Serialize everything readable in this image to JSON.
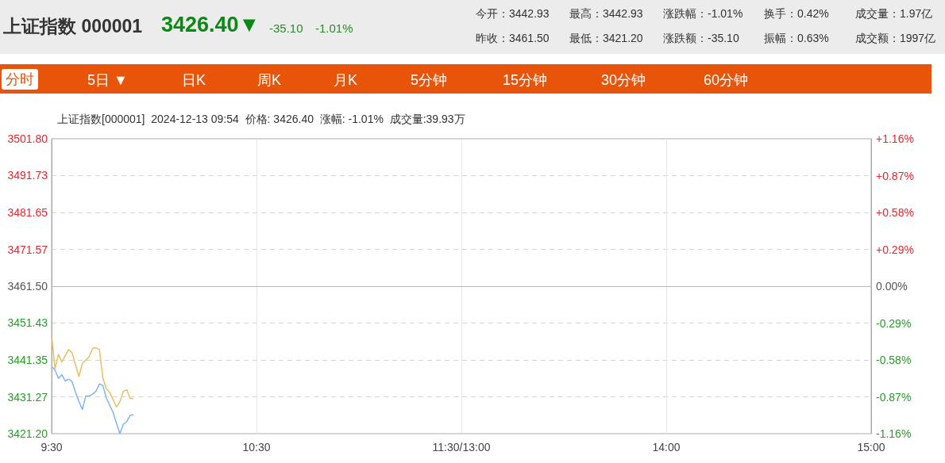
{
  "chart_data": {
    "type": "line",
    "title": "上证指数 000001",
    "annotations": [
      "3426.40▼",
      "-35.10",
      "-1.01%",
      "今开：3442.93",
      "最高：3442.93",
      "涨跌幅：-1.01%",
      "换手：0.42%",
      "成交量：1.97亿",
      "昨收：3461.50",
      "最低：3421.20",
      "涨跌额：-35.10",
      "振幅：0.63%",
      "成交额：1997亿",
      "分时",
      "5日 ▼",
      "日K",
      "周K",
      "月K",
      "5分钟",
      "15分钟",
      "30分钟",
      "60分钟",
      "上证指数[000001]  2024-12-13 09:54  价格: 3426.40  涨幅: -1.01%  成交量:39.93万"
    ],
    "categories": [
      "9:30",
      null,
      null,
      null,
      null,
      null,
      null,
      null,
      null,
      null,
      null,
      null,
      null,
      null,
      null,
      null,
      null,
      null,
      null,
      null,
      null,
      null,
      null,
      null,
      null,
      null,
      null,
      null,
      null,
      null,
      null,
      null,
      null,
      null,
      null,
      null,
      null,
      null,
      null,
      null,
      null,
      null,
      null,
      null,
      null,
      null,
      null,
      null,
      null,
      null,
      null,
      null,
      null,
      null,
      null,
      null,
      null,
      null,
      null,
      null,
      "10:30",
      null,
      null,
      null,
      null,
      null,
      null,
      null,
      null,
      null,
      null,
      null,
      null,
      null,
      null,
      null,
      null,
      null,
      null,
      null,
      null,
      null,
      null,
      null,
      null,
      null,
      null,
      null,
      null,
      null,
      null,
      null,
      null,
      null,
      null,
      null,
      null,
      null,
      null,
      null,
      null,
      null,
      null,
      null,
      null,
      null,
      null,
      null,
      null,
      null,
      null,
      null,
      null,
      null,
      null,
      null,
      null,
      null,
      null,
      null,
      "11:30/13:00",
      null,
      null,
      null,
      null,
      null,
      null,
      null,
      null,
      null,
      null,
      null,
      null,
      null,
      null,
      null,
      null,
      null,
      null,
      null,
      null,
      null,
      null,
      null,
      null,
      null,
      null,
      null,
      null,
      null,
      null,
      null,
      null,
      null,
      null,
      null,
      null,
      null,
      null,
      null,
      null,
      null,
      null,
      null,
      null,
      null,
      null,
      null,
      null,
      null,
      null,
      null,
      null,
      null,
      null,
      null,
      null,
      null,
      null,
      null,
      "14:00",
      null,
      null,
      null,
      null,
      null,
      null,
      null,
      null,
      null,
      null,
      null,
      null,
      null,
      null,
      null,
      null,
      null,
      null,
      null,
      null,
      null,
      null,
      null,
      null,
      null,
      null,
      null,
      null,
      null,
      null,
      null,
      null,
      null,
      null,
      null,
      null,
      null,
      null,
      null,
      null,
      null,
      null,
      null,
      null,
      null,
      null,
      null,
      null,
      null,
      null,
      null,
      null,
      null,
      null,
      null,
      null,
      null,
      null,
      null,
      "15:00"
    ],
    "series": [
      {
        "color": "#e8bf62",
        "values": [
          3448.0,
          3439.0,
          3442.9,
          3440.8,
          3442.5,
          3444.2,
          3443.3,
          3440.0,
          3436.8,
          3440.4,
          3441.3,
          3442.2,
          3444.5,
          3444.7,
          3444.2,
          3436.4,
          3433.5,
          3432.5,
          3430.5,
          3428.5,
          3429.9,
          3432.8,
          3433.2,
          3430.8,
          3430.8,
          null,
          null,
          null,
          null,
          null,
          null,
          null,
          null,
          null,
          null,
          null,
          null,
          null,
          null,
          null,
          null,
          null,
          null,
          null,
          null,
          null,
          null,
          null,
          null,
          null,
          null,
          null,
          null,
          null,
          null,
          null,
          null,
          null,
          null,
          null,
          null,
          null,
          null,
          null,
          null,
          null,
          null,
          null,
          null,
          null,
          null,
          null,
          null,
          null,
          null,
          null,
          null,
          null,
          null,
          null,
          null,
          null,
          null,
          null,
          null,
          null,
          null,
          null,
          null,
          null,
          null,
          null,
          null,
          null,
          null,
          null,
          null,
          null,
          null,
          null,
          null,
          null,
          null,
          null,
          null,
          null,
          null,
          null,
          null,
          null,
          null,
          null,
          null,
          null,
          null,
          null,
          null,
          null,
          null,
          null,
          null,
          null,
          null,
          null,
          null,
          null,
          null,
          null,
          null,
          null,
          null,
          null,
          null,
          null,
          null,
          null,
          null,
          null,
          null,
          null,
          null,
          null,
          null,
          null,
          null,
          null,
          null,
          null,
          null,
          null,
          null,
          null,
          null,
          null,
          null,
          null,
          null,
          null,
          null,
          null,
          null,
          null,
          null,
          null,
          null,
          null,
          null,
          null,
          null,
          null,
          null,
          null,
          null,
          null,
          null,
          null,
          null,
          null,
          null,
          null,
          null,
          null,
          null,
          null,
          null,
          null,
          null,
          null,
          null,
          null,
          null,
          null,
          null,
          null,
          null,
          null,
          null,
          null,
          null,
          null,
          null,
          null,
          null,
          null,
          null,
          null,
          null,
          null,
          null,
          null,
          null,
          null,
          null,
          null,
          null,
          null,
          null,
          null,
          null,
          null,
          null,
          null,
          null,
          null,
          null,
          null,
          null,
          null,
          null,
          null,
          null,
          null,
          null,
          null,
          null,
          null,
          null,
          null,
          null,
          null,
          null
        ]
      },
      {
        "color": "#7fb6f2",
        "values": [
          3439.6,
          3438.6,
          3436.3,
          3437.3,
          3435.6,
          3436.1,
          3435.4,
          3432.5,
          3430.0,
          3427.8,
          3431.5,
          3431.5,
          3432.0,
          3432.8,
          3434.8,
          3434.4,
          3431.0,
          3429.0,
          3427.0,
          3424.0,
          3421.2,
          3423.8,
          3424.5,
          3426.2,
          3426.4,
          null,
          null,
          null,
          null,
          null,
          null,
          null,
          null,
          null,
          null,
          null,
          null,
          null,
          null,
          null,
          null,
          null,
          null,
          null,
          null,
          null,
          null,
          null,
          null,
          null,
          null,
          null,
          null,
          null,
          null,
          null,
          null,
          null,
          null,
          null,
          null,
          null,
          null,
          null,
          null,
          null,
          null,
          null,
          null,
          null,
          null,
          null,
          null,
          null,
          null,
          null,
          null,
          null,
          null,
          null,
          null,
          null,
          null,
          null,
          null,
          null,
          null,
          null,
          null,
          null,
          null,
          null,
          null,
          null,
          null,
          null,
          null,
          null,
          null,
          null,
          null,
          null,
          null,
          null,
          null,
          null,
          null,
          null,
          null,
          null,
          null,
          null,
          null,
          null,
          null,
          null,
          null,
          null,
          null,
          null,
          null,
          null,
          null,
          null,
          null,
          null,
          null,
          null,
          null,
          null,
          null,
          null,
          null,
          null,
          null,
          null,
          null,
          null,
          null,
          null,
          null,
          null,
          null,
          null,
          null,
          null,
          null,
          null,
          null,
          null,
          null,
          null,
          null,
          null,
          null,
          null,
          null,
          null,
          null,
          null,
          null,
          null,
          null,
          null,
          null,
          null,
          null,
          null,
          null,
          null,
          null,
          null,
          null,
          null,
          null,
          null,
          null,
          null,
          null,
          null,
          null,
          null,
          null,
          null,
          null,
          null,
          null,
          null,
          null,
          null,
          null,
          null,
          null,
          null,
          null,
          null,
          null,
          null,
          null,
          null,
          null,
          null,
          null,
          null,
          null,
          null,
          null,
          null,
          null,
          null,
          null,
          null,
          null,
          null,
          null,
          null,
          null,
          null,
          null,
          null,
          null,
          null,
          null,
          null,
          null,
          null,
          null,
          null,
          null,
          null,
          null,
          null,
          null,
          null,
          null,
          null,
          null,
          null,
          null,
          null,
          null
        ]
      }
    ],
    "ylim": [
      3421.2,
      3501.8
    ],
    "yticks": [
      {
        "value": 3421.2,
        "label": "3421.20"
      },
      {
        "value": 3431.27,
        "label": "3431.27"
      },
      {
        "value": 3441.35,
        "label": "3441.35"
      },
      {
        "value": 3451.43,
        "label": "3451.43"
      },
      {
        "value": 3461.5,
        "label": "3461.50"
      },
      {
        "value": 3471.57,
        "label": "3471.57"
      },
      {
        "value": 3481.65,
        "label": "3481.65"
      },
      {
        "value": 3491.73,
        "label": "3491.73"
      },
      {
        "value": 3501.8,
        "label": "3501.80"
      }
    ],
    "y2lim": [
      -1.16,
      1.16
    ],
    "y2ticks": [
      {
        "value": -1.16,
        "label": "-1.16%"
      },
      {
        "value": -0.87,
        "label": "-0.87%"
      },
      {
        "value": -0.58,
        "label": "-0.58%"
      },
      {
        "value": -0.29,
        "label": "-0.29%"
      },
      {
        "value": 0,
        "label": "0.00%"
      },
      {
        "value": 0.29,
        "label": "+0.29%"
      },
      {
        "value": 0.58,
        "label": "+0.58%"
      },
      {
        "value": 0.87,
        "label": "+0.87%"
      },
      {
        "value": 1.16,
        "label": "+1.16%"
      }
    ],
    "ref_lines": [
      {
        "axis": "y",
        "value": 3461.5,
        "color": "#b8b8b8",
        "line_style": "solid"
      }
    ],
    "grid": true,
    "marker": "none",
    "line_style": "solid"
  }
}
